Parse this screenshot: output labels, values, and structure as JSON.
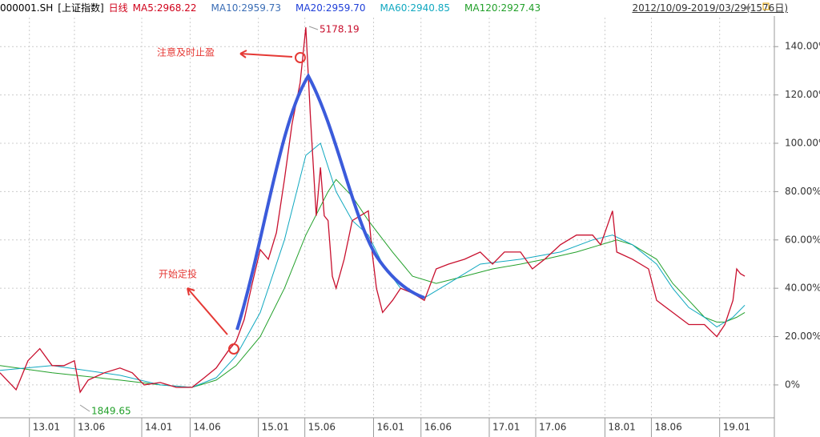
{
  "header": {
    "code": "000001.SH",
    "index_name": "[上证指数]",
    "period": "日线",
    "ma_labels": [
      {
        "text": "MA5:2968.22",
        "color": "#d0021b"
      },
      {
        "text": "MA10:2959.73",
        "color": "#3a6db5"
      },
      {
        "text": "MA20:2959.70",
        "color": "#1f3fd8"
      },
      {
        "text": "MA60:2940.85",
        "color": "#10a8c0"
      },
      {
        "text": "MA120:2927.43",
        "color": "#22a02a"
      }
    ],
    "range": "2012/10/09-2019/03/29(1576日)"
  },
  "chart_data": {
    "type": "line",
    "annotations": {
      "high": "5178.19",
      "low": "1849.65",
      "take_profit": "注意及时止盈",
      "start": "开始定投"
    },
    "xlim": [
      0,
      1630
    ],
    "ylim": [
      -13.6,
      152
    ],
    "xticks": [
      {
        "value": 62,
        "label": "13.01"
      },
      {
        "value": 157,
        "label": "13.06"
      },
      {
        "value": 299,
        "label": "14.01"
      },
      {
        "value": 401,
        "label": "14.06"
      },
      {
        "value": 545,
        "label": "15.01"
      },
      {
        "value": 643,
        "label": "15.06"
      },
      {
        "value": 788,
        "label": "16.01"
      },
      {
        "value": 888,
        "label": "16.06"
      },
      {
        "value": 1032,
        "label": "17.01"
      },
      {
        "value": 1130,
        "label": "17.06"
      },
      {
        "value": 1276,
        "label": "18.01"
      },
      {
        "value": 1374,
        "label": "18.06"
      },
      {
        "value": 1518,
        "label": "19.01"
      }
    ],
    "yticks": [
      {
        "value": 0,
        "label": "0%"
      },
      {
        "value": 20,
        "label": "20.00%"
      },
      {
        "value": 40,
        "label": "40.00%"
      },
      {
        "value": 60,
        "label": "60.00%"
      },
      {
        "value": 80,
        "label": "80.00%"
      },
      {
        "value": 100,
        "label": "100.00%"
      },
      {
        "value": 120,
        "label": "120.00%"
      },
      {
        "value": 140,
        "label": "140.00%"
      }
    ],
    "grid": true,
    "series": [
      {
        "color": "#c8102e",
        "x": [
          0,
          34,
          59,
          84,
          110,
          135,
          157,
          169,
          186,
          220,
          253,
          279,
          304,
          338,
          372,
          405,
          431,
          456,
          481,
          498,
          515,
          532,
          549,
          566,
          583,
          600,
          616,
          633,
          645,
          655,
          667,
          676,
          684,
          692,
          701,
          709,
          726,
          743,
          760,
          777,
          785,
          794,
          807,
          828,
          845,
          870,
          895,
          920,
          946,
          980,
          1013,
          1039,
          1064,
          1098,
          1123,
          1149,
          1182,
          1216,
          1250,
          1267,
          1292,
          1301,
          1334,
          1368,
          1385,
          1419,
          1453,
          1486,
          1512,
          1529,
          1546,
          1554,
          1562,
          1571
        ],
        "values": [
          5,
          -2,
          10,
          15,
          8,
          8,
          10,
          -3,
          2,
          5,
          7,
          5,
          0,
          1,
          -1,
          -1,
          3,
          7,
          14,
          18,
          27,
          42,
          56,
          52,
          63,
          85,
          108,
          125,
          148,
          110,
          70,
          90,
          70,
          68,
          45,
          40,
          52,
          68,
          70,
          72,
          55,
          40,
          30,
          35,
          40,
          38,
          35,
          48,
          50,
          52,
          55,
          50,
          55,
          55,
          48,
          52,
          58,
          62,
          62,
          58,
          72,
          55,
          52,
          48,
          35,
          30,
          25,
          25,
          20,
          25,
          35,
          48,
          46,
          45
        ]
      },
      {
        "color": "#10a8c0",
        "x": [
          0,
          110,
          253,
          338,
          405,
          456,
          498,
          549,
          600,
          645,
          676,
          709,
          743,
          777,
          807,
          845,
          895,
          946,
          1013,
          1098,
          1182,
          1250,
          1292,
          1334,
          1385,
          1419,
          1453,
          1486,
          1512,
          1546,
          1571
        ],
        "values": [
          6,
          8,
          4,
          0,
          -1,
          3,
          12,
          30,
          60,
          95,
          100,
          80,
          68,
          62,
          50,
          40,
          36,
          42,
          50,
          52,
          55,
          60,
          62,
          58,
          50,
          40,
          32,
          28,
          24,
          28,
          33
        ]
      },
      {
        "color": "#22a02a",
        "x": [
          0,
          110,
          253,
          338,
          405,
          456,
          498,
          549,
          600,
          645,
          692,
          709,
          743,
          777,
          828,
          870,
          920,
          980,
          1039,
          1098,
          1149,
          1216,
          1267,
          1301,
          1334,
          1385,
          1419,
          1453,
          1486,
          1512,
          1529,
          1554,
          1571
        ],
        "values": [
          8,
          5,
          2,
          0,
          -1,
          2,
          8,
          20,
          40,
          62,
          80,
          85,
          78,
          68,
          55,
          45,
          42,
          45,
          48,
          50,
          52,
          55,
          58,
          60,
          58,
          52,
          42,
          35,
          28,
          26,
          26,
          28,
          30
        ]
      }
    ]
  }
}
